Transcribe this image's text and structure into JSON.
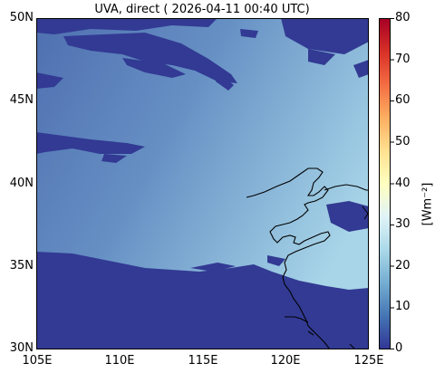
{
  "title": "UVA, direct ( 2026-04-11 00:40 UTC)",
  "lat_labels": [
    "50N",
    "45N",
    "40N",
    "35N",
    "30N"
  ],
  "lon_labels": [
    "105E",
    "110E",
    "115E",
    "120E",
    "125E"
  ],
  "colorbar": {
    "ticks": [
      "80",
      "70",
      "60",
      "50",
      "40",
      "30",
      "20",
      "10",
      "0"
    ],
    "unit": "[Wm⁻²]",
    "colors": [
      "#313695",
      "#4575b4",
      "#74add1",
      "#abd9e9",
      "#e0f3f8",
      "#ffffbf",
      "#fee090",
      "#fdae61",
      "#f46d43",
      "#d73027",
      "#a50026"
    ]
  },
  "map": {
    "extent": {
      "lon": [
        105,
        125
      ],
      "lat": [
        30,
        50
      ]
    },
    "cloud_color": "#323a93",
    "clear_sky_color_west": "#5879b5",
    "clear_sky_color_east": "#9fcde3",
    "coastline_color": "#000000"
  }
}
